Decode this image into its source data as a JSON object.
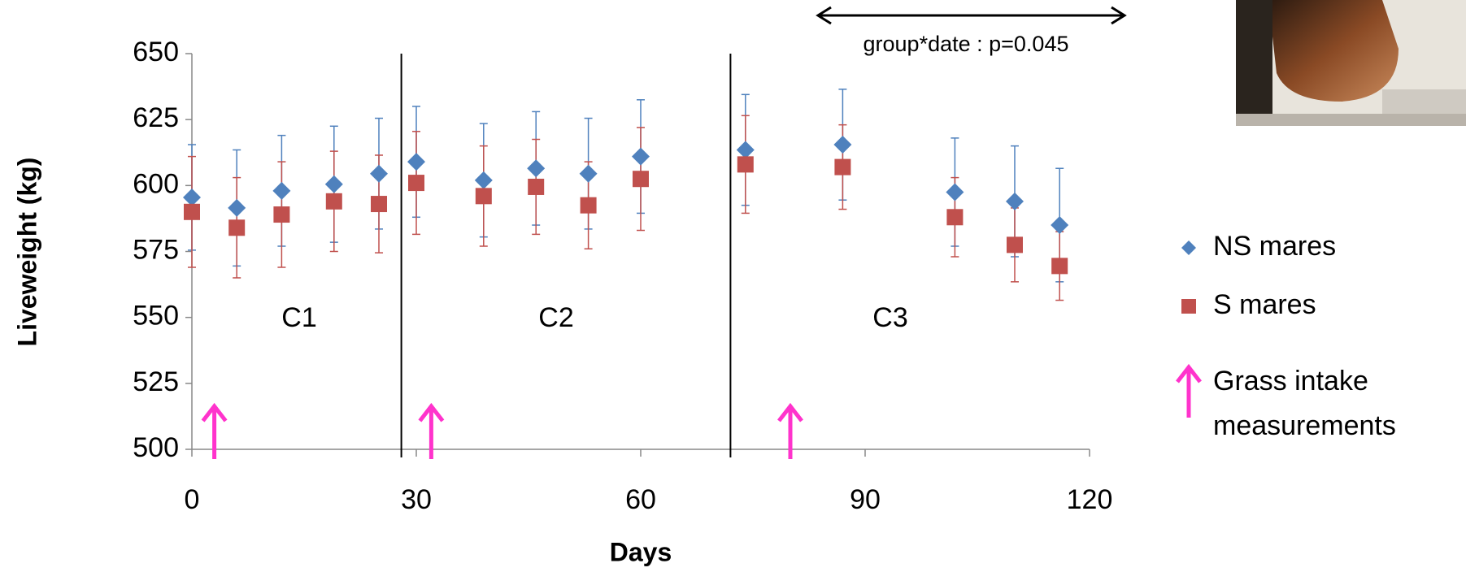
{
  "chart_data": {
    "type": "scatter",
    "x_label": "Days",
    "y_label": "Liveweight (kg)",
    "xlim": [
      0,
      120
    ],
    "xticks": [
      0,
      30,
      60,
      90,
      120
    ],
    "ylim": [
      500,
      650
    ],
    "yticks": [
      500,
      525,
      550,
      575,
      600,
      625,
      650
    ],
    "x": [
      0,
      6,
      12,
      19,
      25,
      30,
      39,
      46,
      53,
      60,
      74,
      87,
      102,
      110,
      116
    ],
    "series": [
      {
        "name": "NS mares",
        "color": "#4f81bd",
        "marker": "diamond",
        "values": [
          595.5,
          591.5,
          598,
          600.5,
          604.5,
          609,
          602,
          606.5,
          604.5,
          611,
          613.5,
          615.5,
          597.5,
          594,
          585
        ],
        "errors": [
          20,
          22,
          21,
          22,
          21,
          21,
          21.5,
          21.5,
          21,
          21.5,
          21,
          21,
          20.5,
          21,
          21.5
        ]
      },
      {
        "name": "S mares",
        "color": "#c0504d",
        "marker": "square",
        "values": [
          590,
          584,
          589,
          594,
          593,
          601,
          596,
          599.5,
          592.5,
          602.5,
          608,
          607,
          588,
          577.5,
          569.5
        ],
        "errors": [
          21,
          19,
          20,
          19,
          18.5,
          19.5,
          19,
          18,
          16.5,
          19.5,
          18.5,
          16,
          15,
          14,
          13
        ]
      }
    ],
    "period_boundaries": [
      28,
      72
    ],
    "period_labels": [
      "C1",
      "C2",
      "C3"
    ],
    "grass_intake_days": [
      3,
      32,
      80
    ],
    "arrow_color": "#ff33cc",
    "arrow_label": [
      "Grass intake",
      "measurements"
    ],
    "annotation": "group*date : p=0.045"
  }
}
